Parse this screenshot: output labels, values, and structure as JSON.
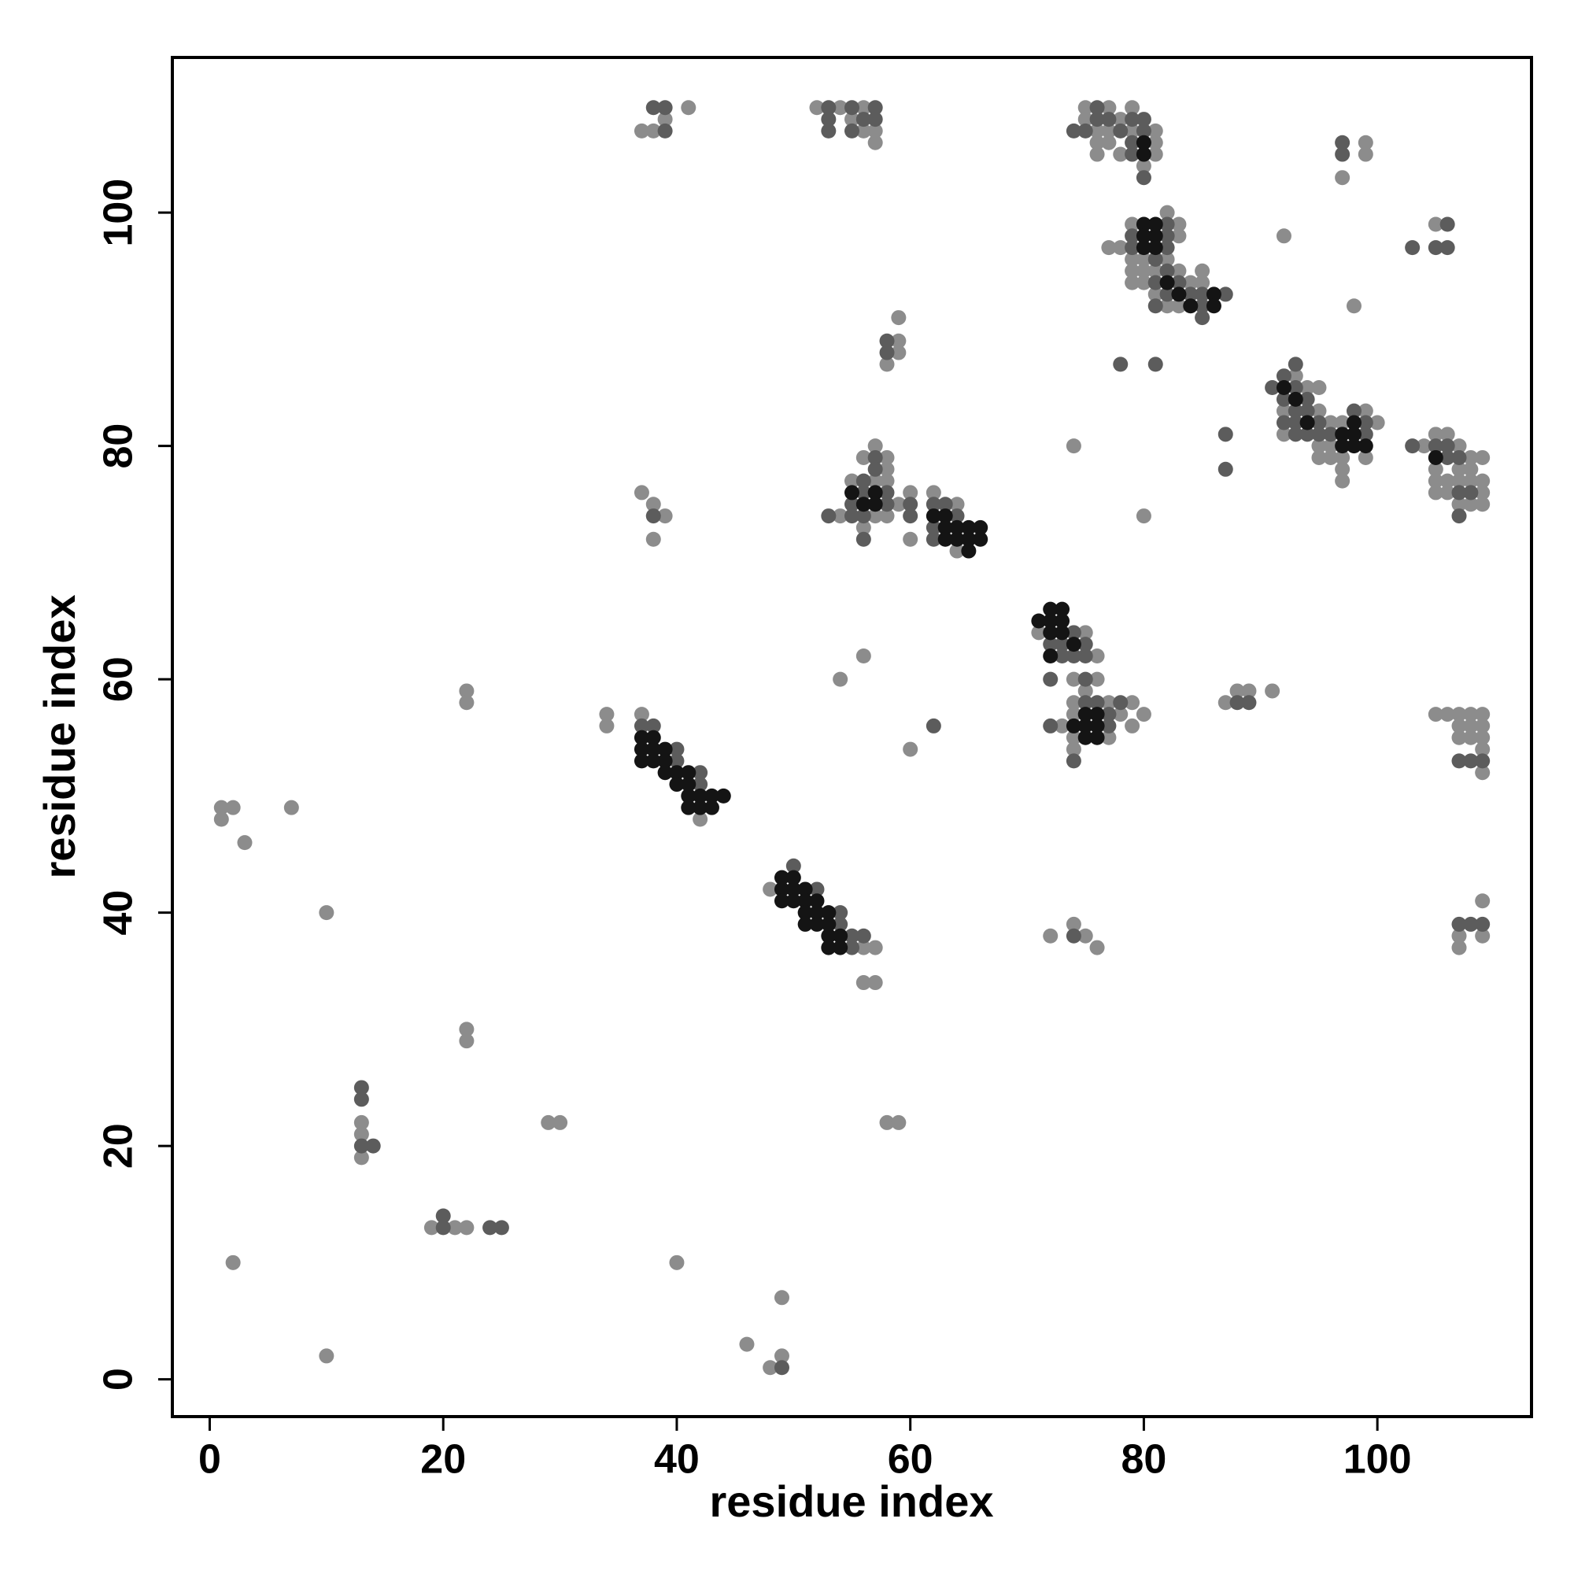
{
  "chart_data": {
    "type": "scatter",
    "xlabel": "residue index",
    "ylabel": "residue index",
    "xlim": [
      -3.2,
      113.2
    ],
    "ylim": [
      -3.2,
      113.3
    ],
    "xticks": [
      0,
      20,
      40,
      60,
      80,
      100
    ],
    "yticks": [
      0,
      20,
      40,
      60,
      80,
      100
    ],
    "series": [
      {
        "color": "#8c8c8c",
        "x": [
          2,
          10,
          1,
          1,
          2,
          3,
          7,
          10,
          13,
          13,
          13,
          22,
          22,
          22,
          22,
          19,
          21,
          22,
          29,
          30,
          34,
          34,
          37,
          38,
          39,
          41,
          37,
          38,
          39,
          38,
          40,
          46,
          48,
          49,
          49,
          37,
          42,
          48,
          56,
          57,
          56,
          57,
          58,
          59,
          54,
          56,
          60,
          52,
          54,
          55,
          56,
          56,
          57,
          57,
          58,
          59,
          59,
          59,
          54,
          55,
          56,
          56,
          57,
          57,
          57,
          58,
          58,
          58,
          58,
          59,
          60,
          60,
          62,
          64,
          64,
          71,
          74,
          75,
          76,
          76,
          73,
          74,
          74,
          74,
          74,
          75,
          77,
          77,
          78,
          79,
          79,
          80,
          72,
          74,
          75,
          76,
          74,
          80,
          75,
          75,
          76,
          76,
          76,
          77,
          77,
          77,
          78,
          78,
          79,
          79,
          80,
          81,
          81,
          81,
          77,
          78,
          79,
          79,
          79,
          79,
          80,
          80,
          80,
          81,
          81,
          82,
          82,
          82,
          83,
          83,
          83,
          83,
          84,
          85,
          85,
          87,
          88,
          89,
          91,
          92,
          98,
          92,
          92,
          93,
          94,
          95,
          95,
          95,
          95,
          96,
          96,
          96,
          97,
          97,
          97,
          97,
          99,
          99,
          100,
          97,
          99,
          99,
          105,
          104,
          105,
          105,
          105,
          105,
          106,
          106,
          106,
          107,
          107,
          107,
          107,
          108,
          108,
          108,
          108,
          109,
          109,
          109,
          109,
          105,
          106,
          107,
          107,
          107,
          108,
          108,
          108,
          109,
          109,
          109,
          109,
          109,
          107,
          107,
          109,
          109
        ],
        "values": [
          10,
          2,
          49,
          48,
          49,
          46,
          49,
          40,
          22,
          21,
          19,
          59,
          58,
          30,
          29,
          13,
          13,
          13,
          22,
          22,
          57,
          56,
          107,
          107,
          108,
          109,
          76,
          75,
          74,
          72,
          10,
          3,
          1,
          2,
          7,
          57,
          48,
          42,
          37,
          37,
          34,
          34,
          22,
          22,
          60,
          62,
          54,
          109,
          109,
          108,
          109,
          107,
          107,
          106,
          87,
          91,
          89,
          88,
          74,
          77,
          79,
          73,
          80,
          77,
          74,
          79,
          78,
          77,
          74,
          75,
          76,
          72,
          76,
          75,
          71,
          64,
          60,
          64,
          62,
          60,
          56,
          58,
          57,
          55,
          54,
          59,
          58,
          55,
          57,
          58,
          56,
          57,
          38,
          39,
          38,
          37,
          80,
          74,
          109,
          108,
          107,
          106,
          105,
          109,
          107,
          106,
          108,
          105,
          109,
          107,
          104,
          107,
          106,
          105,
          97,
          97,
          99,
          96,
          95,
          94,
          96,
          95,
          94,
          95,
          93,
          100,
          96,
          92,
          99,
          98,
          95,
          92,
          94,
          95,
          94,
          58,
          59,
          59,
          59,
          98,
          92,
          83,
          81,
          86,
          85,
          85,
          83,
          80,
          79,
          82,
          80,
          79,
          82,
          79,
          78,
          77,
          83,
          79,
          82,
          103,
          106,
          105,
          99,
          80,
          81,
          78,
          77,
          76,
          81,
          77,
          76,
          80,
          78,
          77,
          75,
          79,
          78,
          77,
          75,
          79,
          77,
          76,
          75,
          57,
          57,
          57,
          56,
          55,
          57,
          56,
          55,
          57,
          56,
          55,
          54,
          52,
          38,
          37,
          41,
          38
        ]
      },
      {
        "color": "#5c5c5c",
        "x": [
          13,
          13,
          13,
          14,
          20,
          20,
          24,
          25,
          38,
          39,
          39,
          38,
          49,
          37,
          38,
          40,
          40,
          42,
          42,
          50,
          52,
          54,
          54,
          55,
          55,
          56,
          62,
          53,
          53,
          53,
          55,
          55,
          56,
          57,
          57,
          58,
          58,
          53,
          55,
          55,
          56,
          56,
          56,
          56,
          57,
          57,
          58,
          58,
          60,
          60,
          62,
          62,
          62,
          63,
          64,
          72,
          72,
          73,
          73,
          74,
          74,
          75,
          75,
          75,
          72,
          74,
          75,
          76,
          77,
          77,
          78,
          74,
          74,
          75,
          76,
          76,
          77,
          78,
          79,
          79,
          79,
          80,
          80,
          80,
          79,
          79,
          81,
          81,
          81,
          82,
          82,
          82,
          82,
          82,
          83,
          84,
          85,
          85,
          85,
          87,
          78,
          81,
          87,
          87,
          88,
          89,
          91,
          92,
          92,
          92,
          93,
          93,
          93,
          93,
          93,
          94,
          94,
          94,
          95,
          95,
          96,
          98,
          99,
          99,
          97,
          97,
          103,
          106,
          105,
          106,
          103,
          105,
          106,
          106,
          107,
          107,
          107,
          108,
          107,
          108,
          109,
          107,
          108,
          109
        ],
        "values": [
          25,
          24,
          20,
          20,
          13,
          14,
          13,
          13,
          109,
          109,
          107,
          74,
          1,
          56,
          56,
          54,
          53,
          52,
          51,
          44,
          42,
          40,
          39,
          38,
          37,
          38,
          56,
          109,
          108,
          107,
          109,
          107,
          108,
          109,
          108,
          89,
          88,
          74,
          75,
          74,
          77,
          76,
          74,
          72,
          79,
          78,
          76,
          75,
          75,
          74,
          75,
          73,
          72,
          75,
          74,
          63,
          60,
          63,
          62,
          64,
          62,
          63,
          62,
          60,
          56,
          53,
          58,
          58,
          57,
          56,
          58,
          38,
          107,
          107,
          109,
          108,
          108,
          107,
          108,
          106,
          105,
          108,
          107,
          103,
          98,
          97,
          96,
          94,
          92,
          99,
          98,
          97,
          95,
          93,
          94,
          93,
          93,
          92,
          91,
          93,
          87,
          87,
          81,
          78,
          58,
          58,
          85,
          86,
          84,
          82,
          87,
          85,
          83,
          82,
          81,
          84,
          83,
          81,
          82,
          81,
          81,
          83,
          82,
          81,
          106,
          105,
          97,
          99,
          97,
          97,
          80,
          80,
          80,
          79,
          79,
          76,
          74,
          76,
          53,
          53,
          53,
          39,
          39,
          39
        ]
      },
      {
        "color": "#141414",
        "x": [
          37,
          37,
          37,
          38,
          38,
          38,
          39,
          39,
          39,
          40,
          40,
          41,
          41,
          41,
          41,
          42,
          42,
          43,
          43,
          44,
          49,
          49,
          49,
          50,
          50,
          50,
          51,
          51,
          51,
          51,
          52,
          52,
          52,
          53,
          53,
          53,
          53,
          54,
          54,
          55,
          56,
          57,
          57,
          62,
          63,
          63,
          63,
          64,
          64,
          65,
          65,
          65,
          66,
          66,
          71,
          72,
          72,
          72,
          72,
          73,
          73,
          73,
          74,
          74,
          75,
          75,
          75,
          76,
          76,
          76,
          80,
          80,
          80,
          80,
          80,
          81,
          81,
          81,
          82,
          83,
          84,
          86,
          86,
          92,
          93,
          94,
          97,
          97,
          98,
          98,
          98,
          99,
          105
        ],
        "values": [
          55,
          54,
          53,
          55,
          54,
          53,
          54,
          53,
          52,
          52,
          51,
          52,
          51,
          50,
          49,
          50,
          49,
          50,
          49,
          50,
          43,
          42,
          41,
          43,
          42,
          41,
          42,
          41,
          40,
          39,
          41,
          40,
          39,
          40,
          39,
          38,
          37,
          38,
          37,
          76,
          75,
          76,
          75,
          74,
          74,
          73,
          72,
          73,
          72,
          73,
          72,
          71,
          73,
          72,
          65,
          66,
          65,
          64,
          62,
          66,
          65,
          64,
          63,
          56,
          57,
          56,
          55,
          57,
          56,
          55,
          106,
          105,
          99,
          98,
          97,
          99,
          98,
          97,
          94,
          93,
          92,
          93,
          92,
          85,
          84,
          82,
          81,
          80,
          82,
          81,
          80,
          80,
          79
        ]
      }
    ]
  }
}
